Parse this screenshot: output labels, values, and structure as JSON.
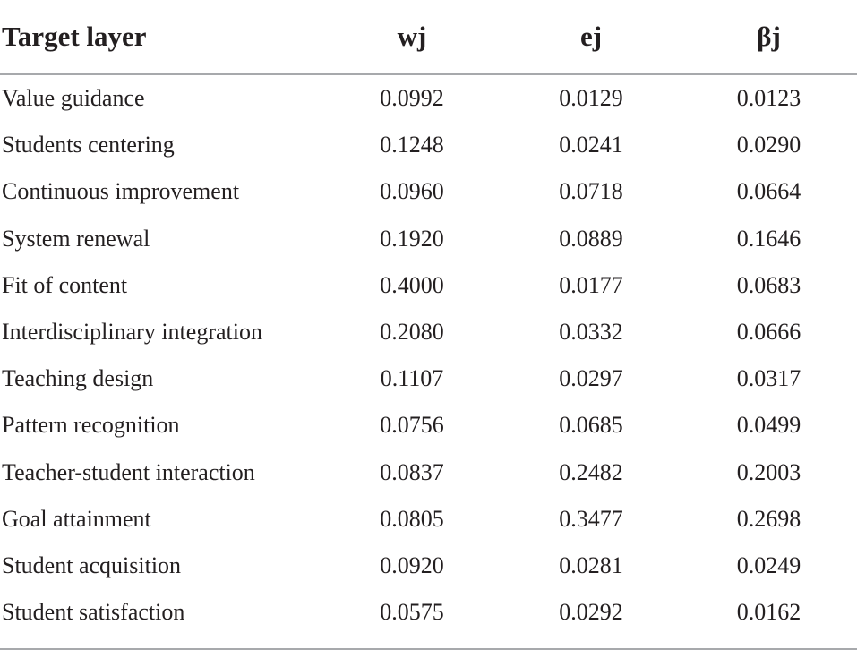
{
  "table": {
    "headers": [
      "Target layer",
      "wj",
      "ej",
      "βj"
    ],
    "rows": [
      {
        "label": "Value guidance",
        "wj": "0.0992",
        "ej": "0.0129",
        "bj": "0.0123"
      },
      {
        "label": "Students centering",
        "wj": "0.1248",
        "ej": "0.0241",
        "bj": "0.0290"
      },
      {
        "label": "Continuous improvement",
        "wj": "0.0960",
        "ej": "0.0718",
        "bj": "0.0664"
      },
      {
        "label": "System renewal",
        "wj": "0.1920",
        "ej": "0.0889",
        "bj": "0.1646"
      },
      {
        "label": "Fit of content",
        "wj": "0.4000",
        "ej": "0.0177",
        "bj": "0.0683"
      },
      {
        "label": "Interdisciplinary integration",
        "wj": "0.2080",
        "ej": "0.0332",
        "bj": "0.0666"
      },
      {
        "label": "Teaching design",
        "wj": "0.1107",
        "ej": "0.0297",
        "bj": "0.0317"
      },
      {
        "label": "Pattern recognition",
        "wj": "0.0756",
        "ej": "0.0685",
        "bj": "0.0499"
      },
      {
        "label": "Teacher-student interaction",
        "wj": "0.0837",
        "ej": "0.2482",
        "bj": "0.2003"
      },
      {
        "label": "Goal attainment",
        "wj": "0.0805",
        "ej": "0.3477",
        "bj": "0.2698"
      },
      {
        "label": "Student acquisition",
        "wj": "0.0920",
        "ej": "0.0281",
        "bj": "0.0249"
      },
      {
        "label": "Student satisfaction",
        "wj": "0.0575",
        "ej": "0.0292",
        "bj": "0.0162"
      }
    ]
  }
}
